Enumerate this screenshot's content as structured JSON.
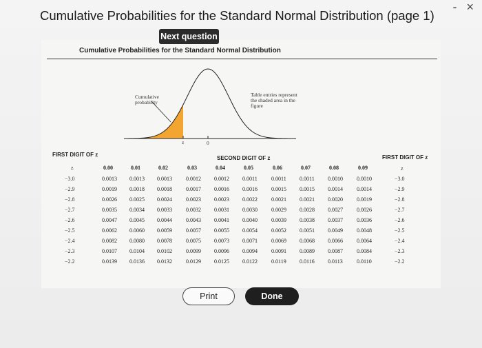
{
  "window": {
    "title": "Cumulative Probabilities for the Standard Normal Distribution (page 1)",
    "minimize": "-",
    "close": "×"
  },
  "next_question_label": "Next question",
  "table": {
    "title": "Cumulative Probabilities for the Standard Normal Distribution",
    "figure": {
      "cumulative_label": "Cumulative probability",
      "entries_label": "Table entries represent the shaded area in the figure",
      "z_label": "z",
      "zero_label": "0",
      "shade_color": "#f2a531"
    },
    "first_digit_label": "FIRST DIGIT OF z",
    "second_digit_label": "SECOND DIGIT OF z",
    "z_header": "z",
    "columns": [
      "0.00",
      "0.01",
      "0.02",
      "0.03",
      "0.04",
      "0.05",
      "0.06",
      "0.07",
      "0.08",
      "0.09"
    ],
    "rows": [
      {
        "z": "−3.0",
        "values": [
          "0.0013",
          "0.0013",
          "0.0013",
          "0.0012",
          "0.0012",
          "0.0011",
          "0.0011",
          "0.0011",
          "0.0010",
          "0.0010"
        ],
        "z_right": "−3.0"
      },
      {
        "z": "−2.9",
        "values": [
          "0.0019",
          "0.0018",
          "0.0018",
          "0.0017",
          "0.0016",
          "0.0016",
          "0.0015",
          "0.0015",
          "0.0014",
          "0.0014"
        ],
        "z_right": "−2.9"
      },
      {
        "z": "−2.8",
        "values": [
          "0.0026",
          "0.0025",
          "0.0024",
          "0.0023",
          "0.0023",
          "0.0022",
          "0.0021",
          "0.0021",
          "0.0020",
          "0.0019"
        ],
        "z_right": "−2.8"
      },
      {
        "z": "−2.7",
        "values": [
          "0.0035",
          "0.0034",
          "0.0033",
          "0.0032",
          "0.0031",
          "0.0030",
          "0.0029",
          "0.0028",
          "0.0027",
          "0.0026"
        ],
        "z_right": "−2.7"
      },
      {
        "z": "−2.6",
        "values": [
          "0.0047",
          "0.0045",
          "0.0044",
          "0.0043",
          "0.0041",
          "0.0040",
          "0.0039",
          "0.0038",
          "0.0037",
          "0.0036"
        ],
        "z_right": "−2.6"
      },
      {
        "z": "−2.5",
        "values": [
          "0.0062",
          "0.0060",
          "0.0059",
          "0.0057",
          "0.0055",
          "0.0054",
          "0.0052",
          "0.0051",
          "0.0049",
          "0.0048"
        ],
        "z_right": "−2.5"
      },
      {
        "z": "−2.4",
        "values": [
          "0.0082",
          "0.0080",
          "0.0078",
          "0.0075",
          "0.0073",
          "0.0071",
          "0.0069",
          "0.0068",
          "0.0066",
          "0.0064"
        ],
        "z_right": "−2.4"
      },
      {
        "z": "−2.3",
        "values": [
          "0.0107",
          "0.0104",
          "0.0102",
          "0.0099",
          "0.0096",
          "0.0094",
          "0.0091",
          "0.0089",
          "0.0087",
          "0.0084"
        ],
        "z_right": "−2.3"
      },
      {
        "z": "−2.2",
        "values": [
          "0.0139",
          "0.0136",
          "0.0132",
          "0.0129",
          "0.0125",
          "0.0122",
          "0.0119",
          "0.0116",
          "0.0113",
          "0.0110"
        ],
        "z_right": "−2.2"
      }
    ]
  },
  "buttons": {
    "print": "Print",
    "done": "Done"
  }
}
